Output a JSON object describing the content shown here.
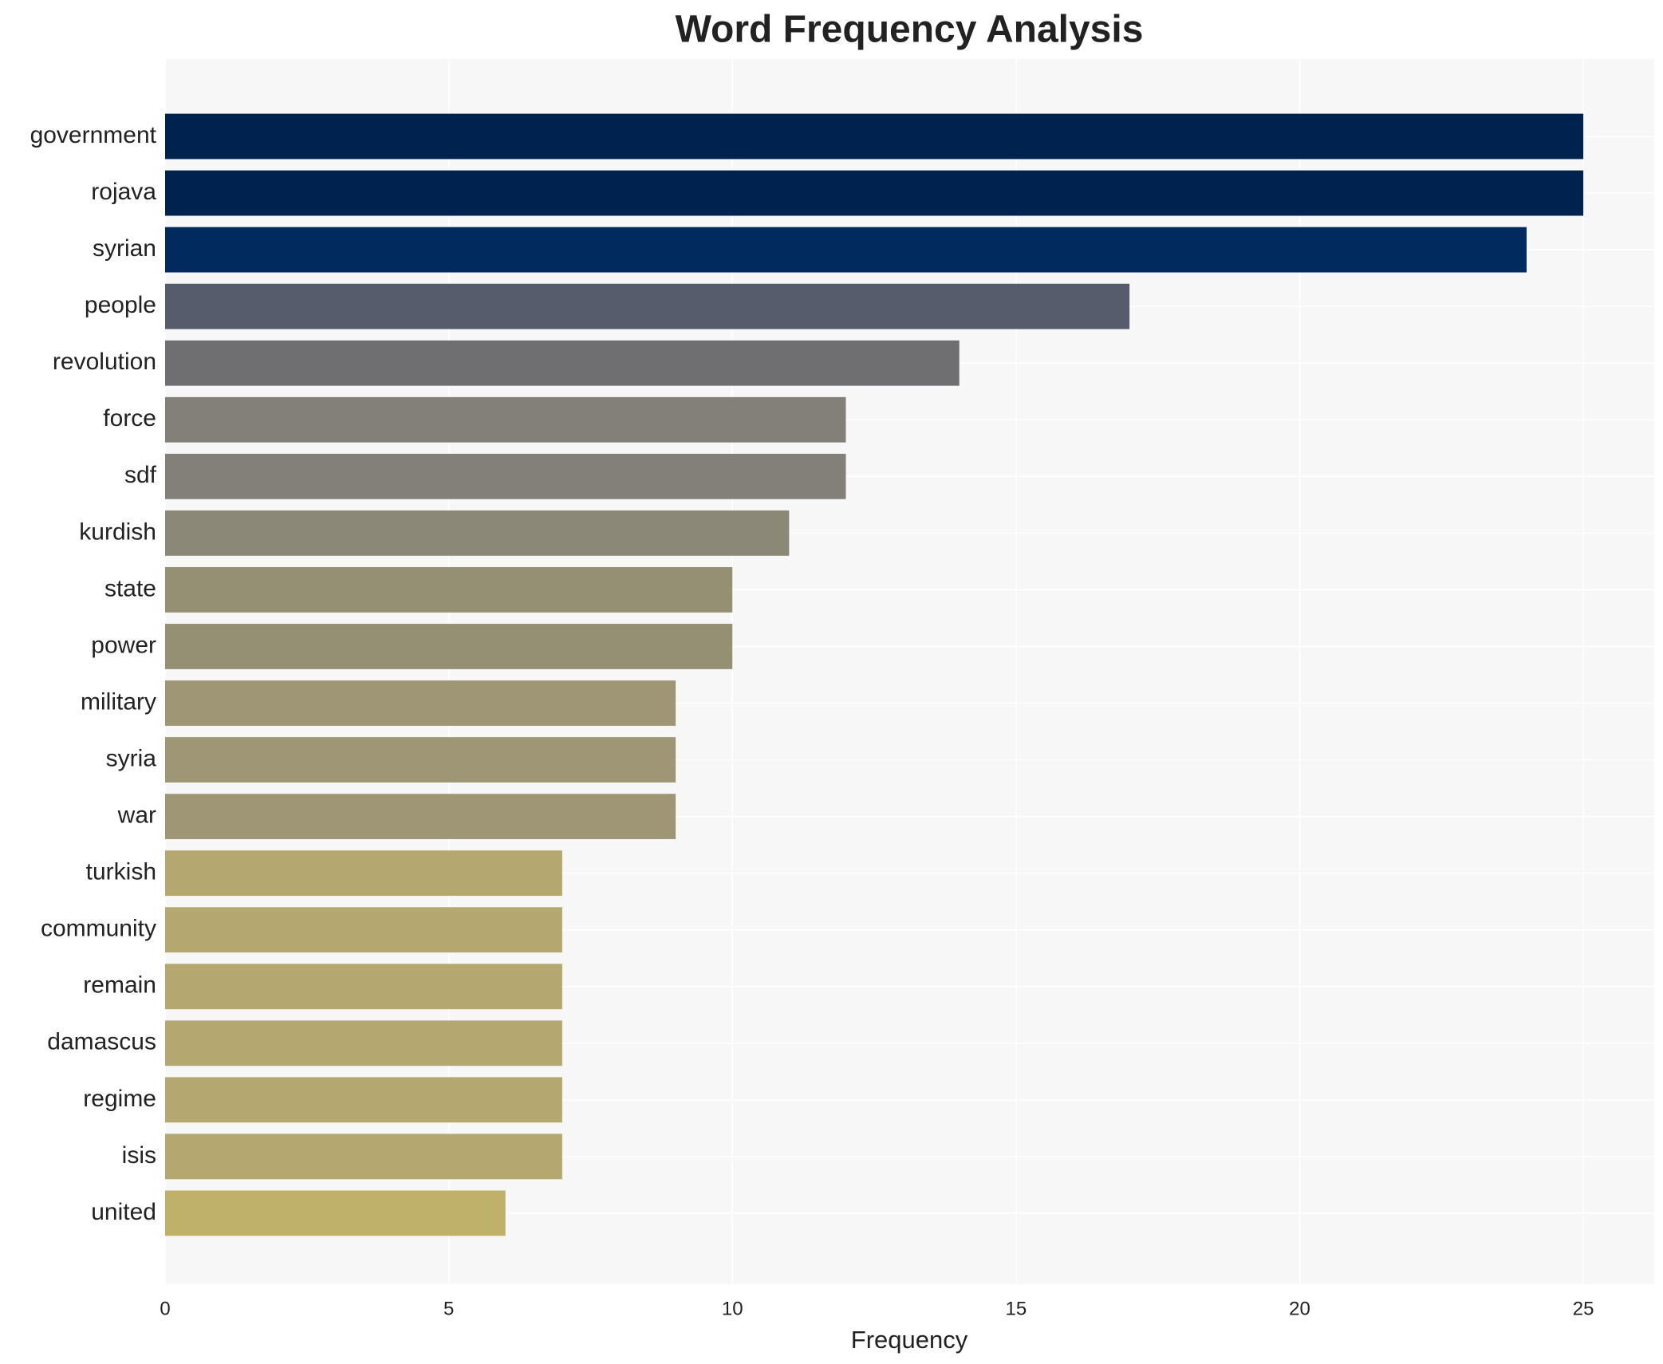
{
  "chart_data": {
    "type": "barh",
    "title": "Word Frequency Analysis",
    "xlabel": "Frequency",
    "categories": [
      "government",
      "rojava",
      "syrian",
      "people",
      "revolution",
      "force",
      "sdf",
      "kurdish",
      "state",
      "power",
      "military",
      "syria",
      "war",
      "turkish",
      "community",
      "remain",
      "damascus",
      "regime",
      "isis",
      "united"
    ],
    "values": [
      25,
      25,
      24,
      17,
      14,
      12,
      12,
      11,
      10,
      10,
      9,
      9,
      9,
      7,
      7,
      7,
      7,
      7,
      7,
      6
    ],
    "colors": [
      "#00224e",
      "#00224e",
      "#012a5e",
      "#575c6d",
      "#6f6f72",
      "#838079",
      "#838079",
      "#8b8877",
      "#958f74",
      "#958f74",
      "#9f9676",
      "#9f9676",
      "#9f9676",
      "#b4a870",
      "#b4a870",
      "#b4a870",
      "#b4a870",
      "#b4a870",
      "#b4a870",
      "#bfb06a"
    ],
    "xlim": [
      0,
      26.25
    ],
    "xticks": [
      0,
      5,
      10,
      15,
      20,
      25
    ],
    "grid": true
  }
}
